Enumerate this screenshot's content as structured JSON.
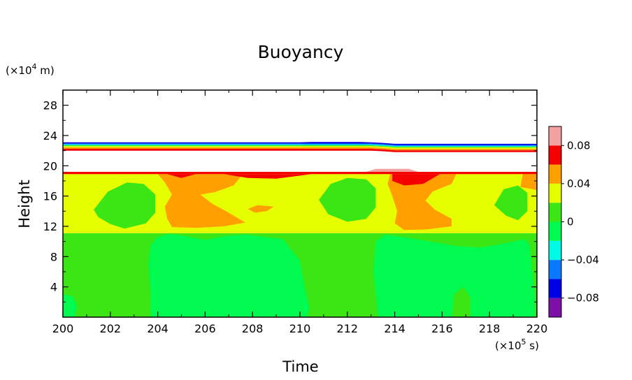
{
  "chart_data": {
    "type": "heatmap",
    "title": "Buoyancy",
    "xlabel": "Time",
    "ylabel": "Height",
    "x_unit": "(×10^5 s)",
    "y_unit": "(×10^4 m)",
    "xlim": [
      200,
      220
    ],
    "ylim": [
      0,
      30
    ],
    "x_ticks": [
      200,
      202,
      204,
      206,
      208,
      210,
      212,
      214,
      216,
      218,
      220
    ],
    "y_ticks": [
      4,
      8,
      12,
      16,
      20,
      24,
      28
    ],
    "grid": false,
    "colorbar": {
      "position": "right",
      "levels": [
        -0.1,
        -0.08,
        -0.06,
        -0.04,
        -0.02,
        0,
        0.02,
        0.04,
        0.06,
        0.08,
        0.1
      ],
      "colors": [
        "#7d0fa6",
        "#0000e6",
        "#0a78ff",
        "#00fae6",
        "#00fa50",
        "#3ce614",
        "#e6ff00",
        "#ffa000",
        "#f50000",
        "#f5a0a0"
      ],
      "tick_labels": [
        {
          "value": 0.08,
          "label": "0.08"
        },
        {
          "value": 0.04,
          "label": "0.04"
        },
        {
          "value": 0,
          "label": "0"
        },
        {
          "value": -0.04,
          "label": "−0.04"
        },
        {
          "value": -0.08,
          "label": "−0.08"
        }
      ]
    },
    "field_regions": [
      {
        "level": "0.00 to 0.02",
        "color": "#3ce614",
        "region": "background below height 11.1"
      },
      {
        "level": "-0.02 to 0.00",
        "color": "#00fa50",
        "x": [
          203.6,
          210.3
        ],
        "y": [
          0,
          11.1
        ]
      },
      {
        "level": "-0.02 to 0.00",
        "color": "#00fa50",
        "x": [
          213.2,
          219.9
        ],
        "y": [
          0,
          11.1
        ]
      },
      {
        "level": "0.02 to 0.04",
        "color": "#e6ff00",
        "region": "height 11.1 to 19"
      },
      {
        "level": "0.00 to 0.02",
        "color": "#3ce614",
        "x": [
          201.1,
          203.8
        ],
        "y": [
          11.5,
          17.8
        ]
      },
      {
        "level": "0.00 to 0.02",
        "color": "#3ce614",
        "x": [
          210.8,
          213.2
        ],
        "y": [
          12.5,
          18.5
        ]
      },
      {
        "level": "0.00 to 0.02",
        "color": "#3ce614",
        "x": [
          218.2,
          219.5
        ],
        "y": [
          12.8,
          17.5
        ]
      },
      {
        "level": "0.04 to 0.06",
        "color": "#ffa000",
        "x": [
          204,
          207.5
        ],
        "y": [
          11.8,
          19
        ]
      },
      {
        "level": "0.04 to 0.06",
        "color": "#ffa000",
        "x": [
          213.8,
          216.4
        ],
        "y": [
          11.5,
          19
        ]
      },
      {
        "level": "0.04 to 0.06",
        "color": "#ffa000",
        "x": [
          207.8,
          208.9
        ],
        "y": [
          13.8,
          14.7
        ]
      },
      {
        "level": "0.06 to 0.08",
        "color": "#f50000",
        "x": [
          200,
          220
        ],
        "y": [
          18.9,
          19.2
        ]
      },
      {
        "level": "0.06 to 0.08",
        "color": "#f50000",
        "x": [
          214,
          215.8
        ],
        "y": [
          17.4,
          18.9
        ]
      },
      {
        "level": "0.08 to 0.10",
        "color": "#f5a0a0",
        "x": [
          212.8,
          215
        ],
        "y": [
          19.0,
          19.6
        ]
      },
      {
        "level": "0.02 to 0.08",
        "color": "mixed",
        "region": "thin bands near height 22.2"
      },
      {
        "level": "-0.08 to 0.00",
        "color": "mixed",
        "region": "thin bands near height 22.8"
      }
    ]
  }
}
